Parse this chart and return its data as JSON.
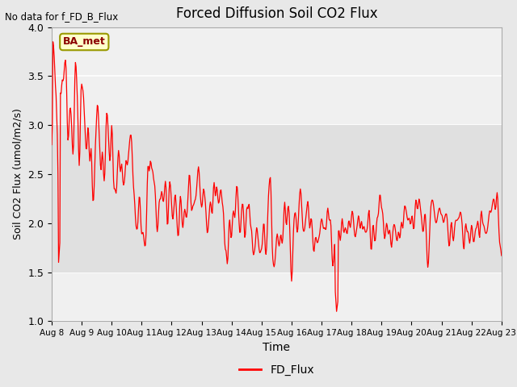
{
  "title": "Forced Diffusion Soil CO2 Flux",
  "xlabel": "Time",
  "ylabel": "Soil CO2 Flux (umol/m2/s)",
  "ylim": [
    1.0,
    4.0
  ],
  "yticks": [
    1.0,
    1.5,
    2.0,
    2.5,
    3.0,
    3.5,
    4.0
  ],
  "no_data_text": "No data for f_FD_B_Flux",
  "ba_met_label": "BA_met",
  "legend_label": "FD_Flux",
  "line_color": "red",
  "fig_bg_color": "#e8e8e8",
  "plot_bg_color": "#f0f0f0",
  "shaded_bg_color": "#e0e0e0",
  "grid_color": "white",
  "x_tick_labels": [
    "Aug 8",
    "Aug 9",
    "Aug 10",
    "Aug 11",
    "Aug 12",
    "Aug 13",
    "Aug 14",
    "Aug 15",
    "Aug 16",
    "Aug 17",
    "Aug 18",
    "Aug 19",
    "Aug 20",
    "Aug 21",
    "Aug 22",
    "Aug 23"
  ],
  "seed": 7
}
